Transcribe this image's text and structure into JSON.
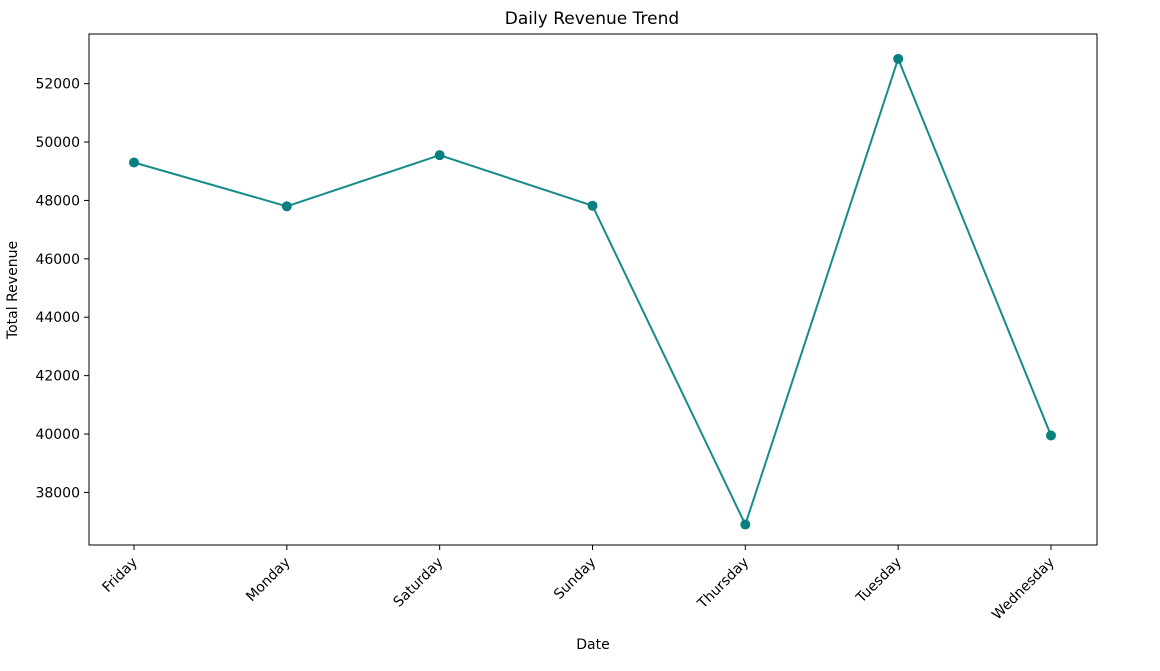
{
  "chart_data": {
    "type": "line",
    "title": "Daily Revenue Trend",
    "xlabel": "Date",
    "ylabel": "Total Revenue",
    "categories": [
      "Friday",
      "Monday",
      "Saturday",
      "Sunday",
      "Thursday",
      "Tuesday",
      "Wednesday"
    ],
    "series": [
      {
        "values": [
          49300,
          47800,
          49550,
          47820,
          36900,
          52850,
          39950
        ]
      }
    ],
    "yticks": [
      38000,
      40000,
      42000,
      44000,
      46000,
      48000,
      50000,
      52000
    ],
    "ylim": [
      36200,
      53700
    ],
    "grid": false,
    "legend": "none",
    "line_color": "#158b8b",
    "marker_color": "#0a7f7f"
  }
}
